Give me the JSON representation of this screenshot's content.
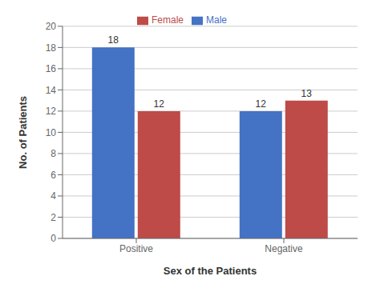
{
  "chart_data": {
    "type": "bar",
    "categories": [
      "Positive",
      "Negative"
    ],
    "series": [
      {
        "name": "Male",
        "color": "#4472C4",
        "values": [
          18,
          12
        ]
      },
      {
        "name": "Female",
        "color": "#BE4B48",
        "values": [
          12,
          13
        ]
      }
    ],
    "xlabel": "Sex of the Patients",
    "ylabel": "No. of Patients",
    "ylim": [
      0,
      20
    ],
    "yticks": [
      0,
      2,
      4,
      6,
      8,
      10,
      12,
      14,
      16,
      18,
      20
    ],
    "grid": true,
    "legend": "top",
    "data_labels": true
  }
}
